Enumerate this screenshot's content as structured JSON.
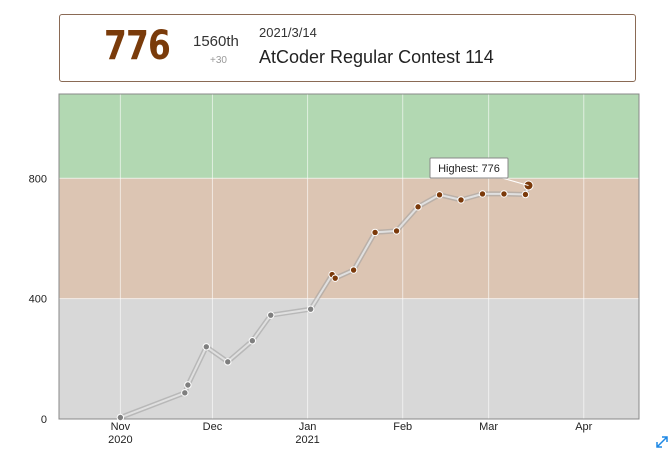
{
  "info": {
    "rating": "776",
    "place": "1560th",
    "diff": "+30",
    "date": "2021/3/14",
    "contest": "AtCoder Regular Contest 114"
  },
  "icons": {
    "expand": "expand-icon"
  },
  "colors": {
    "band_green": "#b2d8b2",
    "band_brown": "#dcc5b3",
    "band_gray": "#d8d8d8",
    "line": "#bdbdbd",
    "point_gray": "#7f7f7f",
    "point_brown": "#7b3a0b",
    "rating_text": "#7a3b0a"
  },
  "chart_data": {
    "type": "line",
    "ylim": [
      0,
      1080
    ],
    "yticks": [
      0,
      400,
      800
    ],
    "xlim": [
      "2020-10-12",
      "2021-04-19"
    ],
    "xticks": [
      {
        "date": "2020-11-01",
        "label": "Nov",
        "sublabel": "2020"
      },
      {
        "date": "2020-12-01",
        "label": "Dec",
        "sublabel": ""
      },
      {
        "date": "2021-01-01",
        "label": "Jan",
        "sublabel": "2021"
      },
      {
        "date": "2021-02-01",
        "label": "Feb",
        "sublabel": ""
      },
      {
        "date": "2021-03-01",
        "label": "Mar",
        "sublabel": ""
      },
      {
        "date": "2021-04-01",
        "label": "Apr",
        "sublabel": ""
      }
    ],
    "bands": [
      {
        "from": 0,
        "to": 400,
        "color": "#d8d8d8"
      },
      {
        "from": 400,
        "to": 800,
        "color": "#dcc5b3"
      },
      {
        "from": 800,
        "to": 1080,
        "color": "#b2d8b2"
      }
    ],
    "series": [
      {
        "x": [
          "2020-11-01",
          "2020-11-22",
          "2020-11-23",
          "2020-11-29",
          "2020-12-06",
          "2020-12-14",
          "2020-12-20",
          "2021-01-02",
          "2021-01-09",
          "2021-01-10",
          "2021-01-16",
          "2021-01-23",
          "2021-01-30",
          "2021-02-06",
          "2021-02-13",
          "2021-02-20",
          "2021-02-27",
          "2021-03-06",
          "2021-03-13",
          "2021-03-14"
        ],
        "y": [
          5,
          87,
          113,
          240,
          190,
          260,
          345,
          365,
          480,
          468,
          495,
          620,
          625,
          705,
          745,
          728,
          748,
          748,
          746,
          776
        ]
      }
    ],
    "highest": {
      "label": "Highest: 776",
      "value": 776,
      "date": "2021-03-14"
    }
  }
}
